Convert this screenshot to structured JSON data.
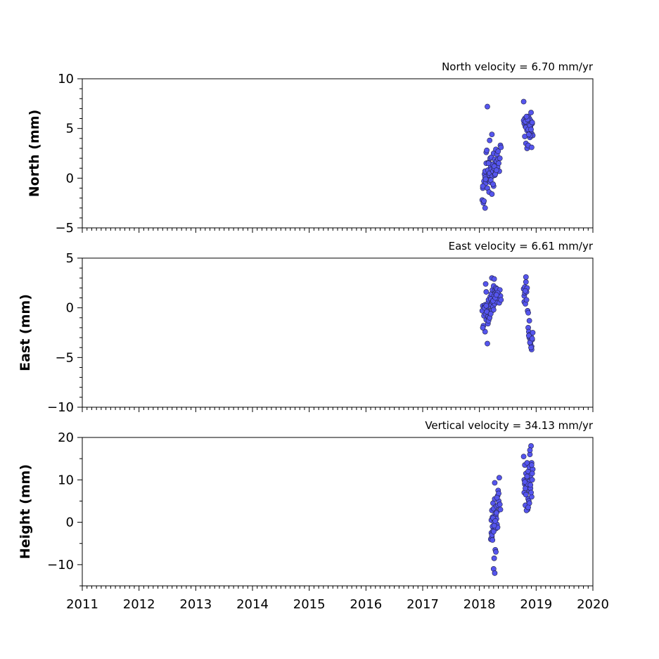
{
  "chart_data": [
    {
      "type": "scatter",
      "ylabel": "North (mm)",
      "velocity_label": "North velocity = 6.70 mm/yr",
      "xlim": [
        2011,
        2020
      ],
      "ylim": [
        -5,
        10
      ],
      "yticks": [
        -5,
        0,
        5,
        10
      ],
      "ytick_labels": [
        "−5",
        "0",
        "5",
        "10"
      ],
      "yminor_step": 1,
      "show_xtick_labels": false,
      "point_color": "#5555ee",
      "x": [
        2018.05,
        2018.06,
        2018.07,
        2018.08,
        2018.09,
        2018.1,
        2018.1,
        2018.11,
        2018.12,
        2018.12,
        2018.13,
        2018.14,
        2018.15,
        2018.15,
        2018.16,
        2018.17,
        2018.17,
        2018.18,
        2018.19,
        2018.19,
        2018.2,
        2018.21,
        2018.21,
        2018.22,
        2018.23,
        2018.23,
        2018.24,
        2018.25,
        2018.25,
        2018.26,
        2018.27,
        2018.27,
        2018.28,
        2018.29,
        2018.29,
        2018.3,
        2018.31,
        2018.31,
        2018.32,
        2018.33,
        2018.34,
        2018.35,
        2018.36,
        2018.37,
        2018.38,
        2018.14,
        2018.18,
        2018.22,
        2018.26,
        2018.06,
        2018.08,
        2018.1,
        2018.13,
        2018.2,
        2018.24,
        2018.28,
        2018.33,
        2018.11,
        2018.16,
        2018.3,
        2018.78,
        2018.79,
        2018.8,
        2018.8,
        2018.81,
        2018.82,
        2018.82,
        2018.83,
        2018.84,
        2018.84,
        2018.85,
        2018.86,
        2018.86,
        2018.87,
        2018.88,
        2018.88,
        2018.89,
        2018.9,
        2018.9,
        2018.91,
        2018.92,
        2018.92,
        2018.93,
        2018.94,
        2018.78,
        2018.82,
        2018.86,
        2018.9,
        2018.81,
        2018.85,
        2018.89,
        2018.93,
        2018.83,
        2018.87,
        2018.91
      ],
      "y": [
        -2.2,
        -1.0,
        -2.5,
        -0.3,
        0.4,
        -3.0,
        0.7,
        -0.5,
        2.6,
        1.5,
        0.1,
        -1.0,
        0.8,
        -0.2,
        1.6,
        0.3,
        -1.4,
        0.5,
        2.0,
        -0.4,
        1.1,
        0.9,
        2.1,
        -1.6,
        0.2,
        1.4,
        0.7,
        2.5,
        -0.8,
        1.0,
        1.9,
        0.3,
        1.3,
        2.9,
        0.6,
        1.7,
        2.4,
        0.9,
        1.1,
        1.9,
        1.5,
        0.7,
        2.0,
        3.3,
        3.1,
        7.2,
        3.8,
        4.4,
        1.2,
        -0.8,
        -2.3,
        0.1,
        2.8,
        -0.2,
        -0.6,
        0.4,
        2.7,
        -0.1,
        1.5,
        0.8,
        7.7,
        5.5,
        4.2,
        6.0,
        5.2,
        3.5,
        5.6,
        6.1,
        4.8,
        3.0,
        5.0,
        6.2,
        3.3,
        5.4,
        4.6,
        6.0,
        4.1,
        5.8,
        5.2,
        6.6,
        3.1,
        4.5,
        5.5,
        4.3,
        5.8,
        5.1,
        4.9,
        4.3,
        5.7,
        5.9,
        5.3,
        5.6,
        6.2,
        4.4,
        4.9
      ]
    },
    {
      "type": "scatter",
      "ylabel": "East (mm)",
      "velocity_label": "East velocity = 6.61 mm/yr",
      "xlim": [
        2011,
        2020
      ],
      "ylim": [
        -10,
        5
      ],
      "yticks": [
        -10,
        -5,
        0,
        5
      ],
      "ytick_labels": [
        "−10",
        "−5",
        "0",
        "5"
      ],
      "yminor_step": 1,
      "show_xtick_labels": false,
      "point_color": "#5555ee",
      "x": [
        2018.05,
        2018.06,
        2018.07,
        2018.08,
        2018.09,
        2018.1,
        2018.1,
        2018.11,
        2018.12,
        2018.12,
        2018.13,
        2018.14,
        2018.15,
        2018.15,
        2018.16,
        2018.17,
        2018.17,
        2018.18,
        2018.19,
        2018.19,
        2018.2,
        2018.21,
        2018.21,
        2018.22,
        2018.23,
        2018.23,
        2018.24,
        2018.25,
        2018.25,
        2018.26,
        2018.27,
        2018.27,
        2018.28,
        2018.29,
        2018.29,
        2018.3,
        2018.31,
        2018.31,
        2018.32,
        2018.33,
        2018.34,
        2018.35,
        2018.36,
        2018.37,
        2018.38,
        2018.11,
        2018.14,
        2018.16,
        2018.22,
        2018.26,
        2018.06,
        2018.09,
        2018.13,
        2018.18,
        2018.24,
        2018.28,
        2018.32,
        2018.2,
        2018.12,
        2018.3,
        2018.78,
        2018.79,
        2018.79,
        2018.8,
        2018.8,
        2018.81,
        2018.82,
        2018.82,
        2018.83,
        2018.84,
        2018.85,
        2018.86,
        2018.86,
        2018.87,
        2018.88,
        2018.88,
        2018.89,
        2018.9,
        2018.9,
        2018.91,
        2018.92,
        2018.92,
        2018.93,
        2018.94,
        2018.81,
        2018.83,
        2018.87,
        2018.89,
        2018.91,
        2018.93
      ],
      "y": [
        -0.3,
        0.2,
        -1.8,
        -0.8,
        0.1,
        -2.4,
        0.3,
        -0.6,
        1.6,
        -1.2,
        -0.2,
        0.4,
        -0.9,
        -1.6,
        0.8,
        -0.4,
        -1.1,
        0.2,
        1.1,
        -0.6,
        0.9,
        0.3,
        1.4,
        -0.3,
        0.6,
        1.8,
        0.1,
        2.2,
        -0.2,
        1.2,
        1.7,
        0.4,
        1.5,
        2.0,
        0.8,
        1.6,
        1.9,
        0.6,
        1.1,
        1.4,
        0.9,
        0.5,
        1.8,
        1.2,
        0.8,
        2.4,
        -3.6,
        -1.3,
        3.0,
        2.9,
        -2.0,
        0.0,
        -0.4,
        -1.0,
        0.7,
        1.0,
        1.5,
        -0.6,
        0.2,
        1.3,
        1.9,
        1.2,
        0.6,
        2.1,
        1.5,
        0.4,
        3.1,
        2.6,
        1.6,
        2.0,
        -0.3,
        -0.5,
        -2.0,
        -2.4,
        -1.3,
        -3.0,
        -2.7,
        -3.3,
        -3.6,
        -2.9,
        -3.9,
        -4.2,
        -3.2,
        -2.5,
        1.7,
        0.8,
        -2.8,
        -3.5,
        -4.0,
        -3.1
      ]
    },
    {
      "type": "scatter",
      "ylabel": "Height (mm)",
      "velocity_label": "Vertical velocity = 34.13 mm/yr",
      "xlim": [
        2011,
        2020
      ],
      "ylim": [
        -15,
        20
      ],
      "yticks": [
        -10,
        0,
        10,
        20
      ],
      "ytick_labels": [
        "−10",
        "0",
        "10",
        "20"
      ],
      "yminor_step": 5,
      "show_xtick_labels": true,
      "xticks": [
        2011,
        2012,
        2013,
        2014,
        2015,
        2016,
        2017,
        2018,
        2019,
        2020
      ],
      "xtick_labels": [
        "2011",
        "2012",
        "2013",
        "2014",
        "2015",
        "2016",
        "2017",
        "2018",
        "2019",
        "2020"
      ],
      "xminor_step": 0.0833333,
      "point_color": "#5555ee",
      "x": [
        2018.2,
        2018.21,
        2018.21,
        2018.22,
        2018.22,
        2018.23,
        2018.23,
        2018.24,
        2018.24,
        2018.25,
        2018.25,
        2018.26,
        2018.26,
        2018.27,
        2018.27,
        2018.28,
        2018.28,
        2018.29,
        2018.29,
        2018.3,
        2018.3,
        2018.31,
        2018.31,
        2018.32,
        2018.32,
        2018.33,
        2018.33,
        2018.34,
        2018.34,
        2018.35,
        2018.36,
        2018.37,
        2018.22,
        2018.25,
        2018.27,
        2018.29,
        2018.24,
        2018.26,
        2018.28,
        2018.3,
        2018.23,
        2018.31,
        2018.78,
        2018.79,
        2018.79,
        2018.8,
        2018.8,
        2018.81,
        2018.82,
        2018.82,
        2018.83,
        2018.84,
        2018.84,
        2018.85,
        2018.86,
        2018.86,
        2018.87,
        2018.88,
        2018.88,
        2018.89,
        2018.9,
        2018.9,
        2018.91,
        2018.92,
        2018.92,
        2018.93,
        2018.94,
        2018.81,
        2018.83,
        2018.85,
        2018.87,
        2018.89,
        2018.91,
        2018.93,
        2018.8,
        2018.84,
        2018.88,
        2018.92,
        2018.86,
        2018.9
      ],
      "y": [
        -4.0,
        -2.5,
        0.5,
        2.8,
        -3.5,
        1.2,
        -1.0,
        4.5,
        -2.0,
        -11.0,
        3.2,
        -8.5,
        0.0,
        5.5,
        -12.0,
        2.0,
        -6.5,
        1.5,
        -1.5,
        3.8,
        0.8,
        -0.5,
        2.5,
        6.2,
        -1.2,
        4.0,
        7.5,
        5.0,
        6.8,
        10.5,
        4.2,
        3.0,
        -3.0,
        -2.2,
        9.3,
        -7.0,
        1.0,
        -0.8,
        0.3,
        2.2,
        -4.2,
        5.8,
        15.5,
        10.0,
        7.0,
        13.5,
        9.0,
        4.0,
        11.5,
        6.5,
        8.5,
        10.5,
        14.0,
        3.0,
        12.0,
        5.5,
        9.5,
        7.5,
        13.0,
        16.0,
        8.0,
        11.0,
        18.0,
        6.0,
        14.0,
        10.0,
        12.5,
        8.0,
        2.8,
        9.0,
        5.0,
        17.0,
        7.0,
        11.5,
        9.5,
        10.8,
        4.5,
        13.5,
        3.5,
        8.8
      ]
    }
  ]
}
